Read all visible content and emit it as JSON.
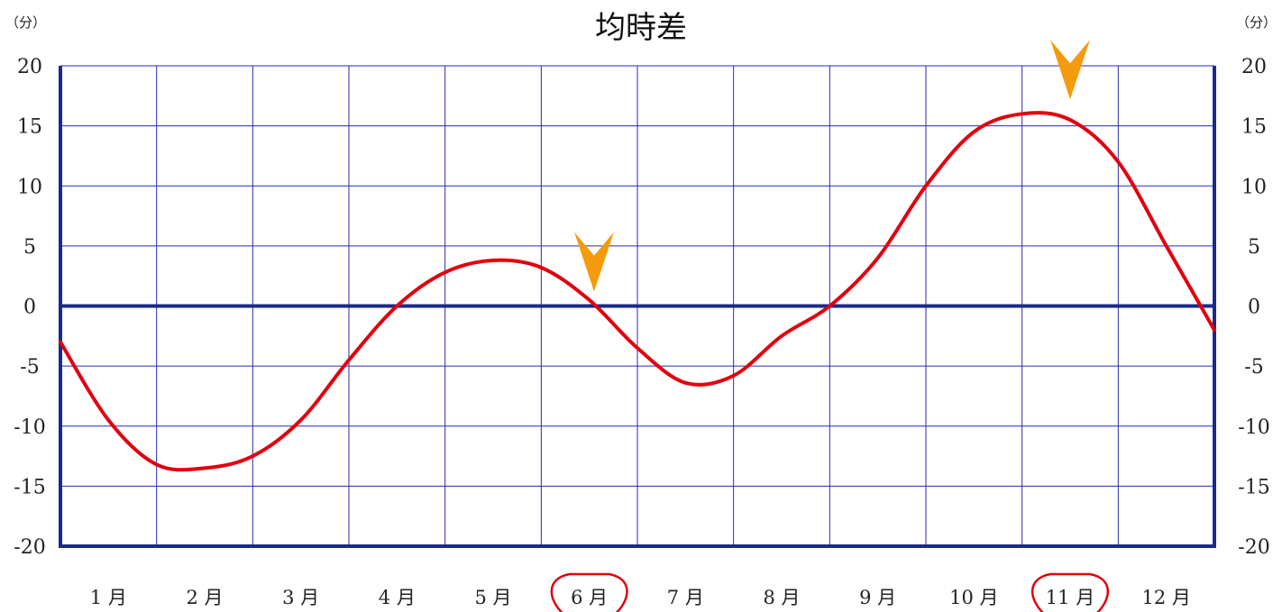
{
  "chart_data": {
    "type": "line",
    "title": "均時差",
    "unit_left": "（分）",
    "unit_right": "（分）",
    "ylim": [
      -20,
      20
    ],
    "yticks": [
      "20",
      "15",
      "10",
      "5",
      "0",
      "-5",
      "-10",
      "-15",
      "-20"
    ],
    "categories": [
      "1月",
      "2月",
      "3月",
      "4月",
      "5月",
      "6月",
      "7月",
      "8月",
      "9月",
      "10月",
      "11月",
      "12月"
    ],
    "highlighted_months": [
      "6月",
      "11月"
    ],
    "markers": [
      {
        "name": "june-marker",
        "x": 5.55,
        "y": 0
      },
      {
        "name": "november-marker",
        "x": 10.5,
        "y": 16
      }
    ],
    "series": [
      {
        "x": [
          0,
          0.5,
          1,
          1.5,
          2,
          2.5,
          3,
          3.5,
          4,
          4.5,
          5,
          5.5,
          6,
          6.5,
          7,
          7.5,
          8,
          8.5,
          9,
          9.5,
          10,
          10.5,
          11,
          11.5,
          12
        ],
        "values": [
          -3,
          -9.5,
          -13.2,
          -13.5,
          -12.5,
          -9.5,
          -4.5,
          0,
          2.8,
          3.8,
          3.2,
          0.5,
          -3.5,
          -6.4,
          -5.8,
          -2.5,
          0,
          4,
          10,
          14.5,
          16,
          15.5,
          12,
          5,
          -2
        ]
      }
    ],
    "colors": {
      "line": "#e1000f",
      "grid": "#2a2ab0",
      "frame": "#1b2a8a",
      "marker": "#f49b0d",
      "circle": "#e1000f"
    }
  }
}
